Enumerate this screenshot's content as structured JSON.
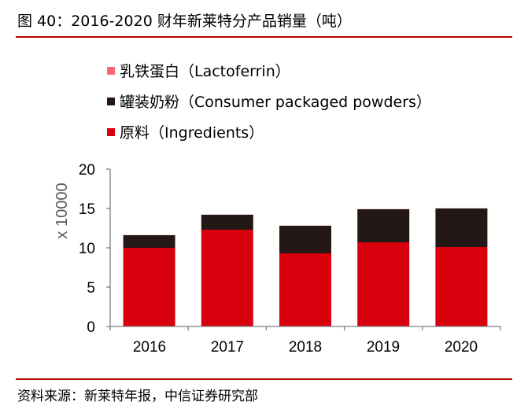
{
  "header": {
    "title": "图 40：2016-2020 财年新莱特分产品销量（吨）"
  },
  "footer": {
    "source": "资料来源：新莱特年报，中信证券研究部"
  },
  "colors": {
    "accent": "#c00000",
    "lactoferrin": "#f4677a",
    "consumer": "#231815",
    "ingredients": "#d9000d",
    "axis": "#7f7f7f"
  },
  "chart_data": {
    "type": "bar",
    "stacked": true,
    "categories": [
      "2016",
      "2017",
      "2018",
      "2019",
      "2020"
    ],
    "series": [
      {
        "name": "原料（Ingredients）",
        "values": [
          10.0,
          12.3,
          9.3,
          10.7,
          10.1
        ]
      },
      {
        "name": "罐装奶粉（Consumer packaged powders）",
        "values": [
          1.6,
          1.9,
          3.5,
          4.2,
          4.9
        ]
      },
      {
        "name": "乳铁蛋白（Lactoferrin）",
        "values": [
          0.02,
          0.02,
          0.02,
          0.02,
          0.02
        ]
      }
    ],
    "legend": [
      "乳铁蛋白（Lactoferrin）",
      "罐装奶粉（Consumer packaged powders）",
      "原料（Ingredients）"
    ],
    "ylabel": "x 10000",
    "xlabel": "",
    "ylim": [
      0,
      20
    ],
    "yticks": [
      "0",
      "5",
      "10",
      "15",
      "20"
    ]
  }
}
